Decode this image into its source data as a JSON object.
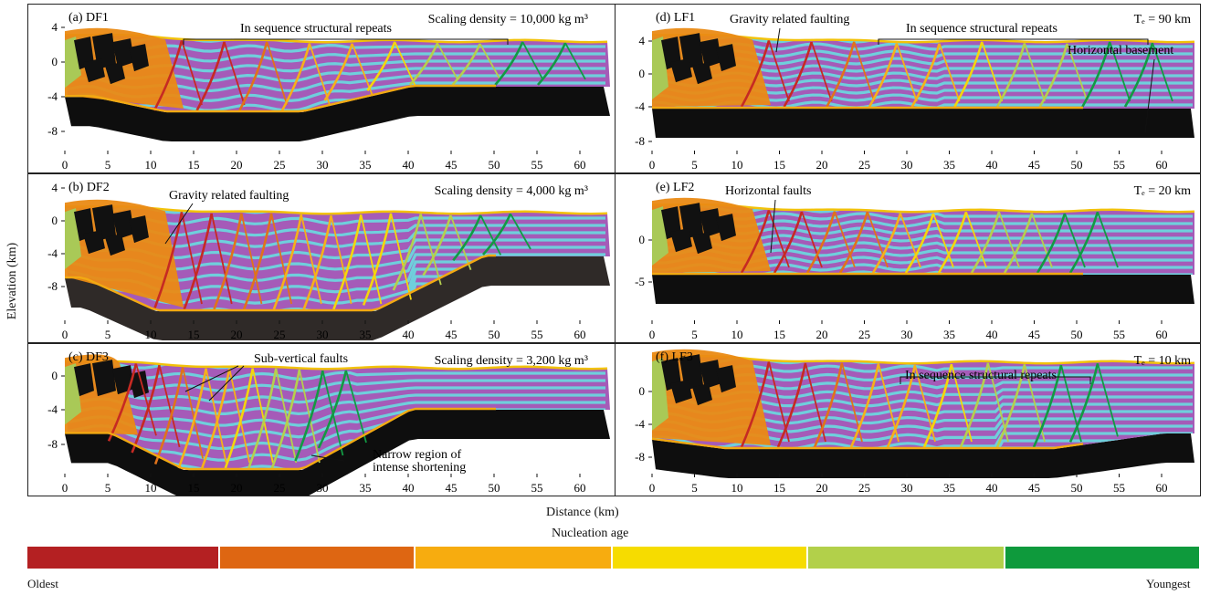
{
  "axes": {
    "ylabel": "Elevation (km)",
    "xlabel": "Distance (km)",
    "xticks": [
      "0",
      "5",
      "10",
      "15",
      "20",
      "25",
      "30",
      "35",
      "40",
      "45",
      "50",
      "55",
      "60"
    ]
  },
  "panels": [
    {
      "id": "a",
      "title": "(a) DF1",
      "corner": "Scaling density = 10,000 kg m³",
      "yticks": [
        "4",
        "0",
        "-4",
        "-8"
      ],
      "annotations": [
        "In sequence structural repeats"
      ]
    },
    {
      "id": "b",
      "title": "(b) DF2",
      "corner": "Scaling density = 4,000 kg m³",
      "yticks": [
        "4",
        "0",
        "-4",
        "-8"
      ],
      "annotations": [
        "Gravity related faulting"
      ]
    },
    {
      "id": "c",
      "title": "(c) DF3",
      "corner": "Scaling density = 3,200 kg m³",
      "yticks": [
        "0",
        "-4",
        "-8"
      ],
      "annotations": [
        "Sub-vertical faults",
        "Narrow region of",
        "intense shortening"
      ]
    },
    {
      "id": "d",
      "title": "(d) LF1",
      "corner": "Tₑ = 90 km",
      "yticks": [
        "4",
        "0",
        "-4",
        "-8"
      ],
      "annotations": [
        "Gravity related faulting",
        "In sequence structural repeats",
        "Horizontal basement"
      ]
    },
    {
      "id": "e",
      "title": "(e) LF2",
      "corner": "Tₑ = 20 km",
      "yticks": [
        "0",
        "-5"
      ],
      "annotations": [
        "Horizontal faults"
      ]
    },
    {
      "id": "f",
      "title": "(f) LF3",
      "corner": "Tₑ = 10 km",
      "yticks": [
        "0",
        "-4",
        "-8"
      ],
      "annotations": [
        "In sequence structural repeats"
      ]
    }
  ],
  "colorbar": {
    "title": "Nucleation age",
    "left_label": "Oldest",
    "right_label": "Youngest",
    "colors": [
      "#b42022",
      "#de6612",
      "#f7ac0f",
      "#f6dc00",
      "#b2d04a",
      "#0e9a3c"
    ]
  }
}
